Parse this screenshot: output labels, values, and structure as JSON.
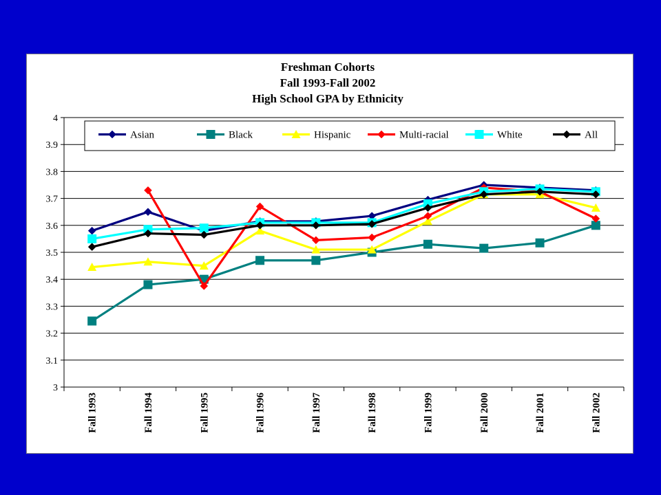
{
  "chart_data": {
    "type": "line",
    "title": [
      "Freshman Cohorts",
      "Fall 1993-Fall 2002",
      "High School GPA by Ethnicity"
    ],
    "xlabel": "",
    "ylabel": "",
    "ylim": [
      3,
      4
    ],
    "yticks": [
      "3",
      "3.1",
      "3.2",
      "3.3",
      "3.4",
      "3.5",
      "3.6",
      "3.7",
      "3.8",
      "3.9",
      "4"
    ],
    "grid": "horizontal",
    "legend_position": "top",
    "categories": [
      "Fall 1993",
      "Fall 1994",
      "Fall 1995",
      "Fall 1996",
      "Fall 1997",
      "Fall 1998",
      "Fall 1999",
      "Fall 2000",
      "Fall 2001",
      "Fall 2002"
    ],
    "series": [
      {
        "name": "Asian",
        "color": "#000080",
        "marker": "diamond",
        "values": [
          3.58,
          3.65,
          3.58,
          3.615,
          3.615,
          3.635,
          3.695,
          3.75,
          3.74,
          3.73
        ]
      },
      {
        "name": "Black",
        "color": "#008080",
        "marker": "square",
        "values": [
          3.245,
          3.38,
          3.4,
          3.47,
          3.47,
          3.5,
          3.53,
          3.515,
          3.535,
          3.6
        ]
      },
      {
        "name": "Hispanic",
        "color": "#ffff00",
        "marker": "triangle",
        "values": [
          3.445,
          3.465,
          3.45,
          3.58,
          3.51,
          3.51,
          3.615,
          3.715,
          3.715,
          3.665
        ]
      },
      {
        "name": "Multi-racial",
        "color": "#ff0000",
        "marker": "diamond",
        "values": [
          null,
          3.73,
          3.375,
          3.67,
          3.545,
          3.555,
          3.635,
          3.74,
          3.725,
          3.625
        ]
      },
      {
        "name": "White",
        "color": "#00ffff",
        "marker": "square",
        "values": [
          3.55,
          3.585,
          3.59,
          3.61,
          3.61,
          3.61,
          3.68,
          3.725,
          3.735,
          3.725
        ]
      },
      {
        "name": "All",
        "color": "#000000",
        "marker": "diamond",
        "values": [
          3.52,
          3.57,
          3.565,
          3.6,
          3.6,
          3.605,
          3.665,
          3.715,
          3.725,
          3.715
        ]
      }
    ]
  }
}
